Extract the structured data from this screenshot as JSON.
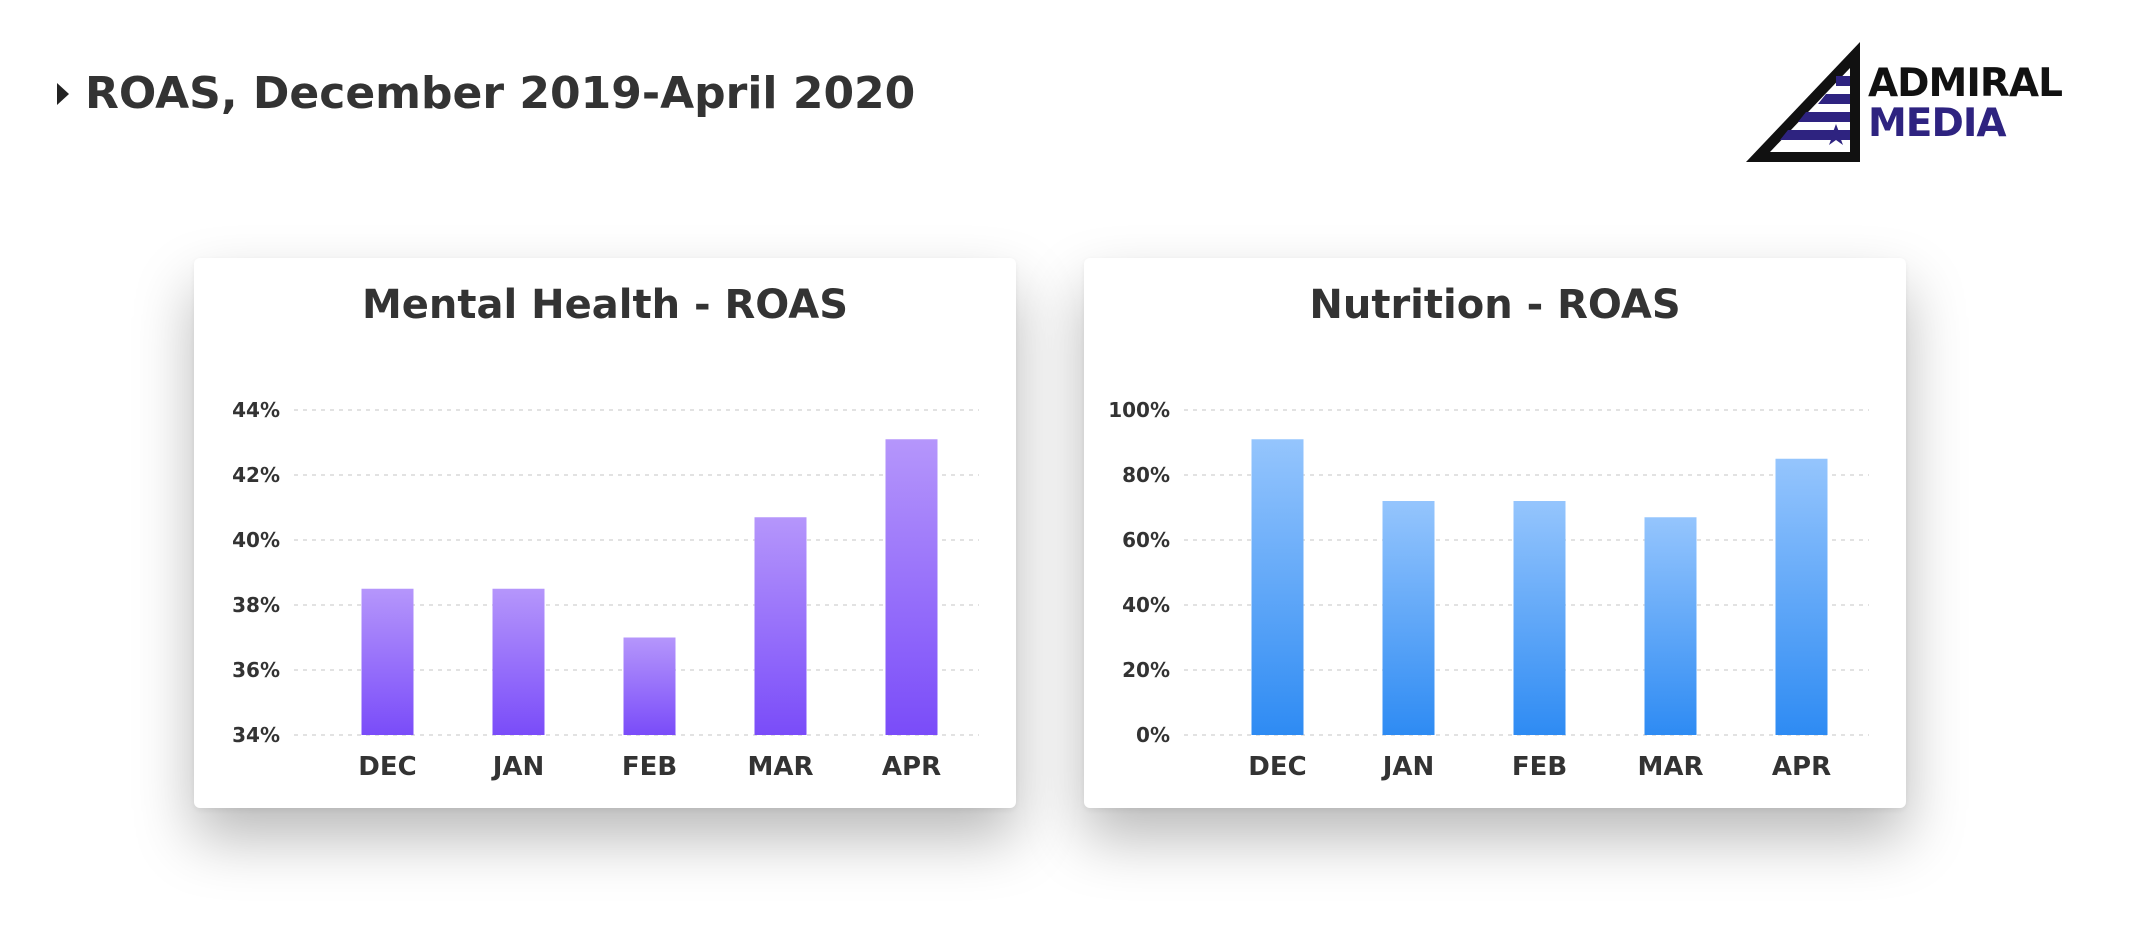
{
  "header": {
    "title": "ROAS, December 2019-April 2020"
  },
  "logo": {
    "line1": "ADMIRAL",
    "line2": "MEDIA",
    "accent": "#2e2380",
    "dark": "#111111"
  },
  "chart_data": [
    {
      "id": "mental",
      "type": "bar",
      "title": "Mental Health - ROAS",
      "categories": [
        "DEC",
        "JAN",
        "FEB",
        "MAR",
        "APR"
      ],
      "values": [
        38.5,
        38.5,
        37.0,
        40.7,
        43.1
      ],
      "ylim": [
        34,
        44
      ],
      "yticks": [
        34,
        36,
        38,
        40,
        42,
        44
      ],
      "ytick_labels": [
        "34%",
        "36%",
        "38%",
        "40%",
        "42%",
        "44%"
      ],
      "grid": true,
      "color_top": "#b596fb",
      "color_bottom": "#7a4cf9"
    },
    {
      "id": "nutrition",
      "type": "bar",
      "title": "Nutrition - ROAS",
      "categories": [
        "DEC",
        "JAN",
        "FEB",
        "MAR",
        "APR"
      ],
      "values": [
        91,
        72,
        72,
        67,
        85
      ],
      "ylim": [
        0,
        100
      ],
      "yticks": [
        0,
        20,
        40,
        60,
        80,
        100
      ],
      "ytick_labels": [
        "0%",
        "20%",
        "40%",
        "60%",
        "80%",
        "100%"
      ],
      "grid": true,
      "color_top": "#95c5fd",
      "color_bottom": "#2e8bf3"
    }
  ]
}
